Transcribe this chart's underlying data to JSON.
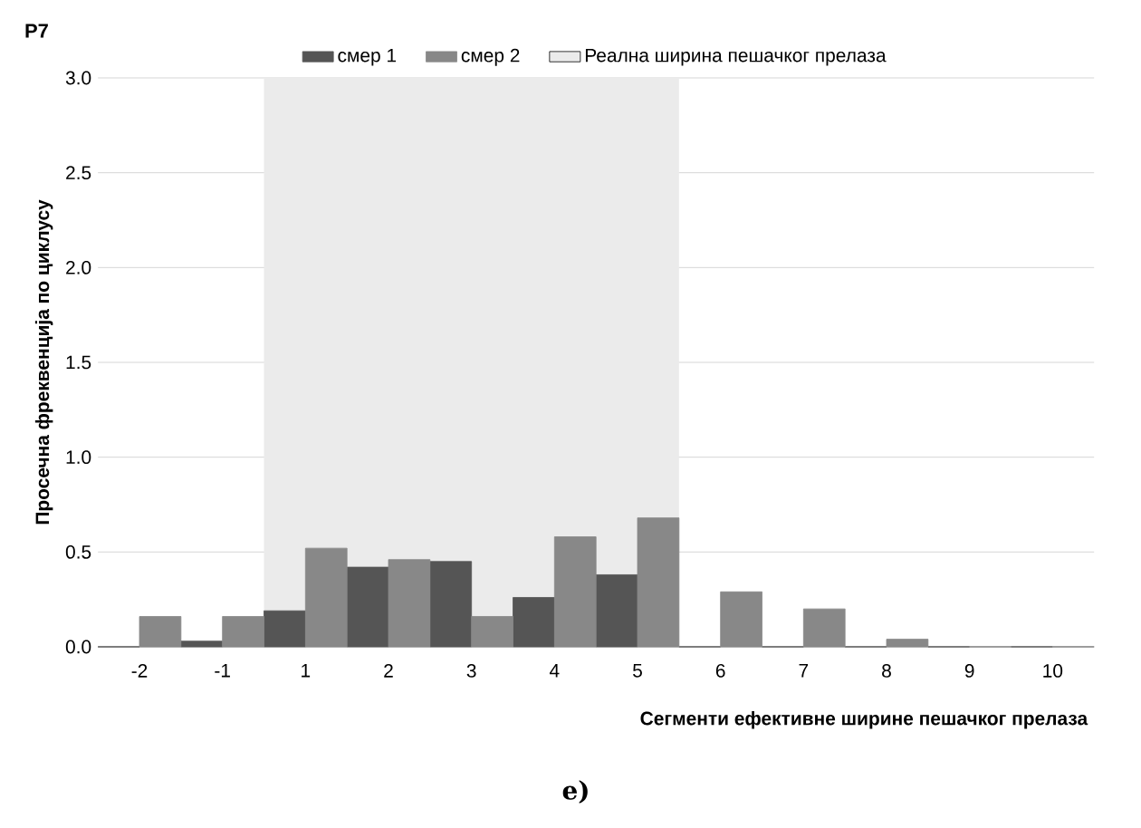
{
  "chart_data": {
    "type": "bar",
    "title": "P7",
    "xlabel": "Сегменти ефективне ширине пешачког прелаза",
    "ylabel": "Просечна фреквенција по циклусу",
    "annotations": [
      "е)"
    ],
    "categories": [
      "-2",
      "-1",
      "1",
      "2",
      "3",
      "4",
      "5",
      "6",
      "7",
      "8",
      "9",
      "10"
    ],
    "series": [
      {
        "name": "смер 1",
        "color": "#555555",
        "values": [
          0,
          0.03,
          0.19,
          0.42,
          0.45,
          0.26,
          0.38,
          0,
          0,
          0,
          0,
          0
        ]
      },
      {
        "name": "смер 2",
        "color": "#888888",
        "values": [
          0.16,
          0.16,
          0.52,
          0.46,
          0.16,
          0.58,
          0.68,
          0.29,
          0.2,
          0.04,
          0,
          0
        ]
      }
    ],
    "ylim": [
      0,
      3.0
    ],
    "yticks": [
      {
        "value": 0,
        "label": "0.0"
      },
      {
        "value": 0.5,
        "label": "0.5"
      },
      {
        "value": 1,
        "label": "1.0"
      },
      {
        "value": 1.5,
        "label": "1.5"
      },
      {
        "value": 2,
        "label": "2.0"
      },
      {
        "value": 2.5,
        "label": "2.5"
      },
      {
        "value": 3,
        "label": "3.0"
      }
    ],
    "bands": [
      {
        "axis": "x",
        "from": "1",
        "to": "5",
        "label": "Реална ширина пешачког прелаза",
        "color": "#ebebeb"
      }
    ],
    "grid": "y",
    "legend": "top"
  }
}
